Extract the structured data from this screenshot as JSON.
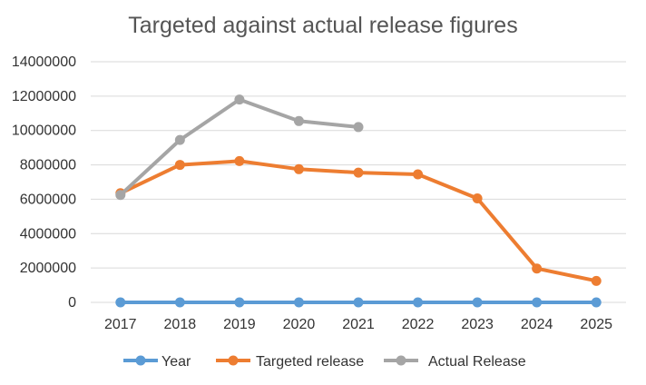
{
  "chart_data": {
    "type": "line",
    "title": "Targeted against actual release figures",
    "xlabel": "",
    "ylabel": "",
    "categories": [
      "2017",
      "2018",
      "2019",
      "2020",
      "2021",
      "2022",
      "2023",
      "2024",
      "2025"
    ],
    "ylim": [
      0,
      14000000
    ],
    "yticks": [
      "0",
      "2000000",
      "4000000",
      "6000000",
      "8000000",
      "10000000",
      "12000000",
      "14000000"
    ],
    "grid": true,
    "legend_position": "bottom",
    "series": [
      {
        "name": "Year",
        "color": "#5B9BD5",
        "values": [
          2017,
          2018,
          2019,
          2020,
          2021,
          2022,
          2023,
          2024,
          2025
        ]
      },
      {
        "name": "Targeted release",
        "color": "#ED7D31",
        "values": [
          6350000,
          8000000,
          8220000,
          7750000,
          7550000,
          7450000,
          6050000,
          1970000,
          1250000
        ]
      },
      {
        "name": "Actual Release",
        "color": "#A5A5A5",
        "values": [
          6250000,
          9450000,
          11800000,
          10550000,
          10200000,
          null,
          null,
          null,
          null
        ]
      }
    ]
  }
}
